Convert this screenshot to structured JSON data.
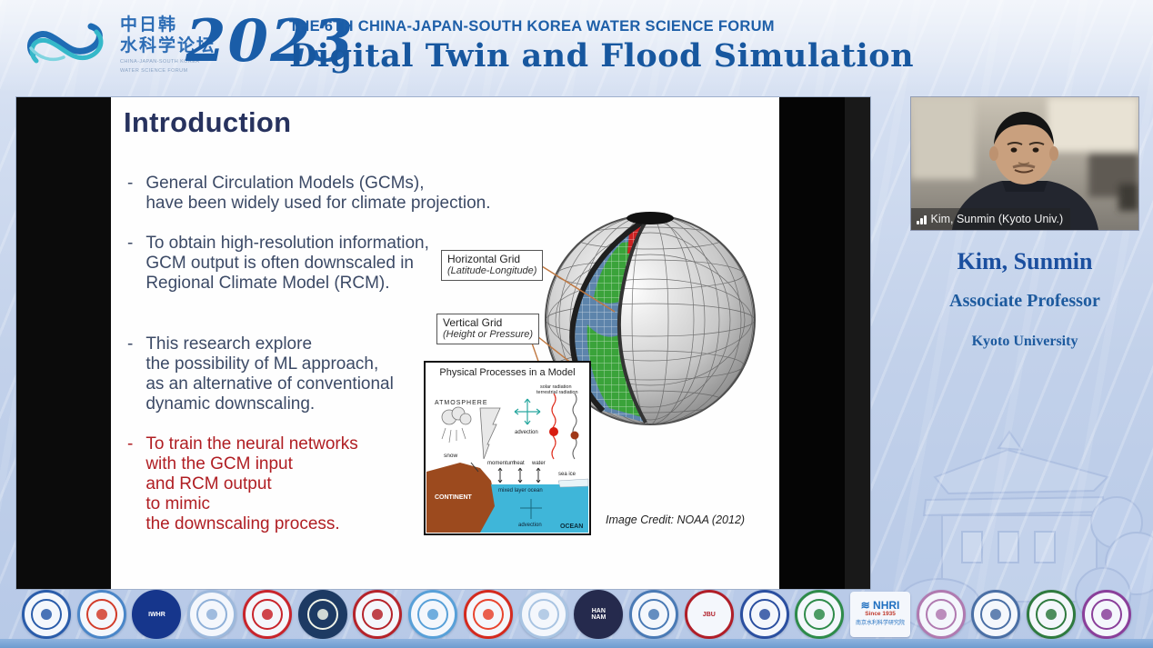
{
  "header": {
    "logo_cn1": "中日韩",
    "logo_cn2": "水科学论坛",
    "logo_sub1": "CHINA-JAPAN-SOUTH KOREA",
    "logo_sub2": "WATER SCIENCE FORUM",
    "year": "2023",
    "forum_line": "THE 6TH CHINA-JAPAN-SOUTH KOREA WATER SCIENCE FORUM",
    "title": "Digital Twin and Flood Simulation"
  },
  "slide": {
    "title": "Introduction",
    "bullet_marker": "-",
    "bullets": [
      {
        "text": "General Circulation Models (GCMs),\nhave been widely used for climate projection."
      },
      {
        "text": "To obtain high-resolution information,\nGCM output is often downscaled in\nRegional Climate Model (RCM)."
      },
      {
        "text": "This research explore\nthe possibility of ML approach,\nas an alternative of conventional\ndynamic downscaling."
      },
      {
        "text": "To train the neural networks\nwith the GCM input\nand RCM output\nto mimic\nthe downscaling process."
      }
    ],
    "diagram": {
      "horizontal_label": "Horizontal Grid",
      "horizontal_sub": "(Latitude-Longitude)",
      "vertical_label": "Vertical Grid",
      "vertical_sub": "(Height or Pressure)",
      "inset_title": "Physical Processes in a Model",
      "inset": {
        "atmosphere": "ATMOSPHERE",
        "snow": "snow",
        "momentum": "momentum",
        "heat": "heat",
        "water": "water",
        "sea_ice": "sea ice",
        "advection": "advection",
        "solar_radiation": "solar radiation",
        "terrestrial_radiation": "terrestrial radiation",
        "continent": "CONTINENT",
        "mixed_layer_ocean": "mixed layer ocean",
        "ocean": "OCEAN",
        "advection2": "advection"
      },
      "credit": "Image Credit: NOAA (2012)"
    }
  },
  "speaker": {
    "caption": "Kim, Sunmin (Kyoto Univ.)",
    "name": "Kim, Sunmin",
    "role": "Associate Professor",
    "affiliation": "Kyoto University"
  },
  "footer": {
    "logos": [
      {
        "name": "jilin-university-seal",
        "shape": "circle",
        "ring": "#2a5caa",
        "dot": "#2a5caa",
        "label": ""
      },
      {
        "name": "wing-swoosh-seal",
        "shape": "circle",
        "ring": "#4a86c8",
        "dot": "#d23c2a",
        "label": ""
      },
      {
        "name": "iwhr-seal",
        "shape": "circle",
        "ring": "#16368c",
        "bg": "#16368c",
        "fg": "#ffffff",
        "label": "IWHR"
      },
      {
        "name": "chonnam-national-university-seal",
        "shape": "circle",
        "ring": "#9db9dc",
        "dot": "#8fb0d8",
        "label": ""
      },
      {
        "name": "kyungpook-national-university-seal",
        "shape": "circle",
        "ring": "#c8242b",
        "dot": "#c8242b",
        "label": ""
      },
      {
        "name": "kyoto-university-seal",
        "shape": "circle",
        "ring": "#1d3a63",
        "bg": "#1d3a63",
        "dot": "#f0f4e8",
        "label": ""
      },
      {
        "name": "peking-university-seal",
        "shape": "circle",
        "ring": "#b5232a",
        "dot": "#b5232a",
        "label": ""
      },
      {
        "name": "dalian-university-of-technology-seal",
        "shape": "circle",
        "ring": "#58a0d8",
        "dot": "#58a0d8",
        "label": ""
      },
      {
        "name": "red-flame-seal",
        "shape": "circle",
        "ring": "#d42a1e",
        "dot": "#e8442e",
        "label": ""
      },
      {
        "name": "pale-blue-flower-seal",
        "shape": "circle",
        "ring": "#a9c4e2",
        "dot": "#a9c4e2",
        "label": ""
      },
      {
        "name": "hannam-university-seal",
        "shape": "circle",
        "ring": "#252a4d",
        "bg": "#252a4d",
        "fg": "#ffffff",
        "label": "HAN\nNAM"
      },
      {
        "name": "blue-university-seal",
        "shape": "circle",
        "ring": "#4a7ab5",
        "dot": "#4a7ab5",
        "label": ""
      },
      {
        "name": "joongbu-university-seal",
        "shape": "circle",
        "ring": "#b01e28",
        "fg": "#b01e28",
        "label": "JBU"
      },
      {
        "name": "blue-shield-university-seal",
        "shape": "circle",
        "ring": "#2a4fa0",
        "dot": "#2a4fa0",
        "label": ""
      },
      {
        "name": "green-kanji-logo",
        "shape": "circle",
        "ring": "#2e8b4a",
        "dot": "#2e8b4a",
        "label": ""
      },
      {
        "name": "nhri-logo",
        "shape": "rect",
        "ring": "#1f6fc0",
        "fg": "#1f6fc0",
        "label": "NHRI",
        "sub": "Since 1935",
        "sub_color": "#c0392b",
        "sub2": "南京水利科学研究院"
      },
      {
        "name": "purple-pink-seal",
        "shape": "circle",
        "ring": "#b07ab0",
        "dot": "#b07ab0",
        "label": ""
      },
      {
        "name": "tianjin-university-seal",
        "shape": "circle",
        "ring": "#4a6fa5",
        "dot": "#4a6fa5",
        "label": ""
      },
      {
        "name": "green-building-seal",
        "shape": "circle",
        "ring": "#2f7a3f",
        "dot": "#2f7a3f",
        "label": ""
      },
      {
        "name": "purple-swirl-seal",
        "shape": "circle",
        "ring": "#8a3f9a",
        "dot": "#8a3f9a",
        "label": ""
      }
    ]
  }
}
